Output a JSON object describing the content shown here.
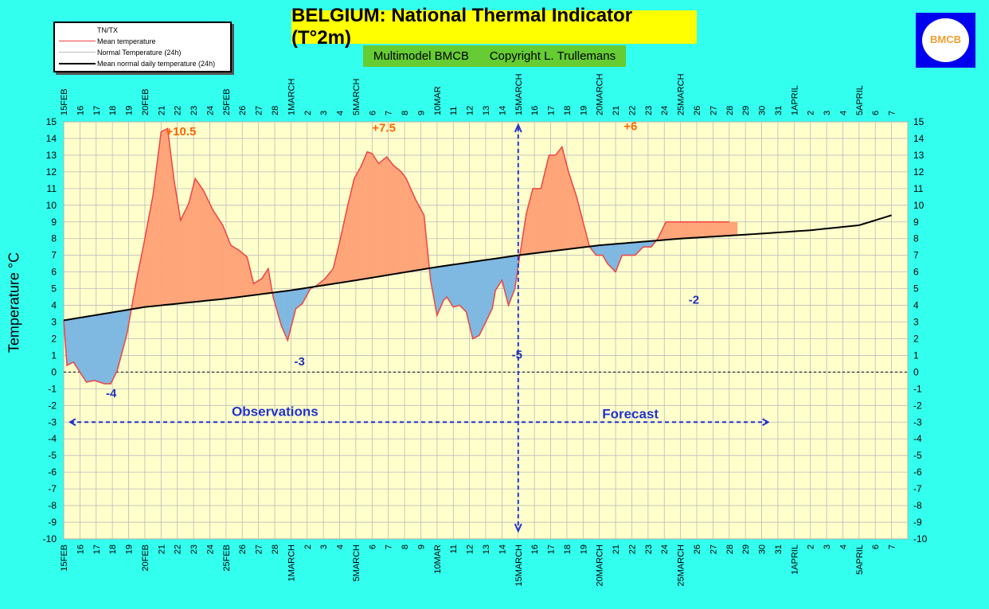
{
  "title": "BELGIUM: National Thermal Indicator (T°2m)",
  "subtitle_left": "Multimodel BMCB",
  "subtitle_right": "Copyright L. Trullemans",
  "logo_text": "BMCB",
  "legend": {
    "items": [
      {
        "label": "TN/TX",
        "color": "#ffffff"
      },
      {
        "label": "Mean temperature",
        "color": "#ee4444"
      },
      {
        "label": "Normal Temperature (24h)",
        "color": "#bbbbbb"
      },
      {
        "label": "Mean normal daily temperature (24h)",
        "color": "#000000"
      }
    ]
  },
  "colors": {
    "background": "#33ffee",
    "plot_area": "#ffffcc",
    "warm_fill": "#ffa57a",
    "cold_fill": "#7fb8e0",
    "mean_line": "#ee4444",
    "normal_line": "#000000",
    "annotation_warm": "#ff6600",
    "annotation_cold": "#2233bb",
    "arrow": "#2233cc"
  },
  "chart_data": {
    "type": "area",
    "ylabel": "Temperature °C",
    "ylim": [
      -10,
      15
    ],
    "yticks": [
      -10,
      -9,
      -8,
      -7,
      -6,
      -5,
      -4,
      -3,
      -2,
      -1,
      0,
      1,
      2,
      3,
      4,
      5,
      6,
      7,
      8,
      9,
      10,
      11,
      12,
      13,
      14,
      15
    ],
    "x_labels": [
      "15FEB",
      "16",
      "17",
      "18",
      "19",
      "20FEB",
      "21",
      "22",
      "23",
      "24",
      "25FEB",
      "26",
      "27",
      "28",
      "1MARCH",
      "2",
      "3",
      "4",
      "5MARCH",
      "6",
      "7",
      "8",
      "9",
      "10MAR",
      "11",
      "12",
      "13",
      "14",
      "15MARCH",
      "16",
      "17",
      "18",
      "19",
      "20MARCH",
      "21",
      "22",
      "23",
      "24",
      "25MARCH",
      "26",
      "27",
      "28",
      "29",
      "30",
      "31",
      "1APRIL",
      "2",
      "3",
      "4",
      "5APRIL",
      "6",
      "7"
    ],
    "series": [
      {
        "name": "Mean temperature",
        "x": [
          0.0,
          0.2,
          0.6,
          1.4,
          1.9,
          2.5,
          2.9,
          3.3,
          3.9,
          4.5,
          4.9,
          5.5,
          6.0,
          6.4,
          6.8,
          7.2,
          7.7,
          8.1,
          8.6,
          9.2,
          9.8,
          10.3,
          10.8,
          11.3,
          11.7,
          12.2,
          12.6,
          12.9,
          13.4,
          13.8,
          14.3,
          14.7,
          15.2,
          15.6,
          16.1,
          16.6,
          17.0,
          17.5,
          17.9,
          18.3,
          18.7,
          19.0,
          19.4,
          19.9,
          20.3,
          20.8,
          21.1,
          21.7,
          22.2,
          22.6,
          23.0,
          23.4,
          23.6,
          24.0,
          24.4,
          24.8,
          25.2,
          25.6,
          26.0,
          26.4,
          26.6,
          27.0,
          27.4,
          27.8,
          28.1,
          28.5,
          28.9,
          29.4,
          29.9,
          30.3,
          30.7,
          31.1,
          31.6,
          32.0,
          32.4,
          32.8,
          33.2,
          33.5,
          34.0,
          34.4,
          34.8,
          35.2,
          35.7,
          36.2,
          36.6,
          37.1,
          37.6,
          38.0,
          38.4,
          38.9,
          39.4,
          39.8,
          40.2,
          40.6,
          41.0,
          41.5,
          42.0,
          42.4
        ],
        "y": [
          3.1,
          0.4,
          0.6,
          -0.6,
          -0.5,
          -0.7,
          -0.7,
          0.1,
          2.3,
          5.6,
          7.5,
          10.6,
          14.4,
          14.6,
          11.5,
          9.1,
          10.1,
          11.6,
          10.9,
          9.7,
          8.8,
          7.6,
          7.3,
          6.9,
          5.3,
          5.6,
          6.2,
          4.5,
          2.8,
          1.9,
          3.8,
          4.1,
          5.0,
          5.2,
          5.6,
          6.2,
          7.8,
          10.0,
          11.6,
          12.3,
          13.2,
          13.1,
          12.5,
          12.9,
          12.4,
          12.0,
          11.6,
          10.3,
          9.4,
          5.5,
          3.4,
          4.3,
          4.5,
          3.9,
          4.0,
          3.6,
          2.0,
          2.2,
          3.0,
          3.8,
          4.9,
          5.5,
          4.0,
          5.0,
          7.0,
          9.5,
          11.0,
          11.0,
          13.0,
          13.0,
          13.5,
          12.0,
          10.5,
          9.0,
          7.5,
          7.0,
          7.0,
          6.5,
          6.0,
          7.0,
          7.0,
          7.0,
          7.5,
          7.5,
          8.0,
          9.0,
          9.0,
          9.0,
          9.0,
          9.0,
          9.0,
          9.0,
          9.0,
          9.0,
          9.0,
          9.0,
          9.0,
          9.0
        ]
      },
      {
        "name": "Mean normal daily temperature (24h)",
        "x": [
          0,
          5,
          10,
          14,
          18,
          23,
          28,
          33,
          38,
          43,
          46,
          49,
          51
        ],
        "y": [
          3.1,
          3.9,
          4.4,
          4.9,
          5.5,
          6.3,
          7.0,
          7.6,
          8.0,
          8.3,
          8.5,
          8.8,
          9.4
        ]
      }
    ],
    "annotations": [
      {
        "text": "+10.5",
        "x": 6.3,
        "y": 14.2,
        "kind": "warm"
      },
      {
        "text": "+7.5",
        "x": 19.0,
        "y": 14.4,
        "kind": "warm"
      },
      {
        "text": "+6",
        "x": 34.5,
        "y": 14.5,
        "kind": "warm"
      },
      {
        "text": "-4",
        "x": 2.6,
        "y": -1.5,
        "kind": "cold"
      },
      {
        "text": "-3",
        "x": 14.2,
        "y": 0.4,
        "kind": "cold"
      },
      {
        "text": "-5",
        "x": 27.6,
        "y": 0.8,
        "kind": "cold"
      },
      {
        "text": "-2",
        "x": 38.5,
        "y": 4.1,
        "kind": "cold"
      }
    ],
    "observations_label": "Observations",
    "forecast_label": "Forecast",
    "observation_forecast_split_x": 28,
    "arrow_range_x": [
      0,
      43
    ],
    "arrow_y": -3
  }
}
